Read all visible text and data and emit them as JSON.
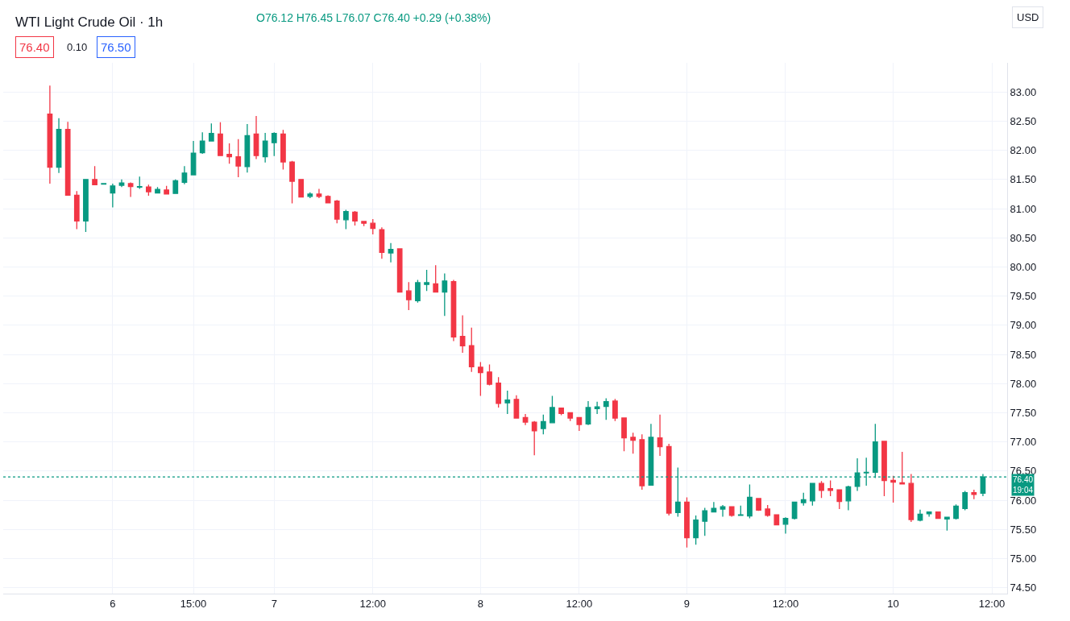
{
  "chart_data": {
    "type": "candlestick",
    "title": "WTI Light Crude Oil · 1h",
    "annotations": [
      "O76.12 H76.45 L76.07 C76.40 +0.29 (+0.38%)",
      "76.40",
      "0.10",
      "76.50",
      "USD"
    ],
    "categories": [
      null,
      null,
      null,
      null,
      null,
      null,
      null,
      "6",
      null,
      null,
      null,
      null,
      null,
      null,
      null,
      null,
      "15:00",
      null,
      null,
      null,
      null,
      null,
      null,
      null,
      null,
      "7",
      null,
      null,
      null,
      null,
      null,
      null,
      null,
      null,
      null,
      null,
      "12:00",
      null,
      null,
      null,
      null,
      null,
      null,
      null,
      null,
      null,
      null,
      null,
      "8",
      null,
      null,
      null,
      null,
      null,
      null,
      null,
      null,
      null,
      null,
      "12:00",
      null,
      null,
      null,
      null,
      null,
      null,
      null,
      null,
      null,
      null,
      null,
      "9",
      null,
      null,
      null,
      null,
      null,
      null,
      null,
      null,
      null,
      null,
      "12:00",
      null,
      null,
      null,
      null,
      null,
      null,
      null,
      null,
      null,
      null,
      null,
      "10",
      null,
      null,
      null,
      null,
      null,
      null,
      null,
      null,
      null,
      null,
      "12:00"
    ],
    "ohlc": [
      [
        82.62,
        83.11,
        81.43,
        81.71
      ],
      [
        81.71,
        82.55,
        81.61,
        82.36
      ],
      [
        82.36,
        82.49,
        81.23,
        81.23
      ],
      [
        81.23,
        81.3,
        80.65,
        80.79
      ],
      [
        80.79,
        81.5,
        80.6,
        81.5
      ],
      [
        81.5,
        81.73,
        81.41,
        81.41
      ],
      [
        81.42,
        81.43,
        81.41,
        81.43
      ],
      [
        81.27,
        81.43,
        81.02,
        81.39
      ],
      [
        81.4,
        81.5,
        81.37,
        81.44
      ],
      [
        81.43,
        81.45,
        81.2,
        81.38
      ],
      [
        81.37,
        81.55,
        81.34,
        81.38
      ],
      [
        81.37,
        81.41,
        81.22,
        81.29
      ],
      [
        81.27,
        81.37,
        81.27,
        81.33
      ],
      [
        81.32,
        81.39,
        81.25,
        81.25
      ],
      [
        81.26,
        81.5,
        81.26,
        81.48
      ],
      [
        81.45,
        81.73,
        81.42,
        81.61
      ],
      [
        81.58,
        82.16,
        81.58,
        81.95
      ],
      [
        81.96,
        82.31,
        81.94,
        82.16
      ],
      [
        82.16,
        82.46,
        82.16,
        82.29
      ],
      [
        82.28,
        82.48,
        81.91,
        81.91
      ],
      [
        81.93,
        82.12,
        81.77,
        81.89
      ],
      [
        81.89,
        82.19,
        81.54,
        81.73
      ],
      [
        81.72,
        82.45,
        81.62,
        82.25
      ],
      [
        82.28,
        82.59,
        81.85,
        81.91
      ],
      [
        81.89,
        82.3,
        81.79,
        82.16
      ],
      [
        82.13,
        82.31,
        81.9,
        82.29
      ],
      [
        82.28,
        82.35,
        81.67,
        81.8
      ],
      [
        81.8,
        81.82,
        81.09,
        81.47
      ],
      [
        81.5,
        81.5,
        81.2,
        81.2
      ],
      [
        81.21,
        81.28,
        81.18,
        81.25
      ],
      [
        81.25,
        81.34,
        81.18,
        81.21
      ],
      [
        81.21,
        81.23,
        81.09,
        81.1
      ],
      [
        81.13,
        81.15,
        80.75,
        80.82
      ],
      [
        80.81,
        80.98,
        80.65,
        80.95
      ],
      [
        80.94,
        80.96,
        80.71,
        80.79
      ],
      [
        80.78,
        80.79,
        80.7,
        80.75
      ],
      [
        80.75,
        80.82,
        80.56,
        80.66
      ],
      [
        80.64,
        80.68,
        80.14,
        80.25
      ],
      [
        80.24,
        80.41,
        80.08,
        80.3
      ],
      [
        80.31,
        80.31,
        79.57,
        79.57
      ],
      [
        79.59,
        79.74,
        79.26,
        79.44
      ],
      [
        79.42,
        79.78,
        79.39,
        79.73
      ],
      [
        79.7,
        79.95,
        79.59,
        79.73
      ],
      [
        79.71,
        80.03,
        79.57,
        79.57
      ],
      [
        79.57,
        79.89,
        79.16,
        79.76
      ],
      [
        79.75,
        79.78,
        78.73,
        78.8
      ],
      [
        78.81,
        79.17,
        78.53,
        78.65
      ],
      [
        78.65,
        78.96,
        78.2,
        78.29
      ],
      [
        78.28,
        78.37,
        77.79,
        78.19
      ],
      [
        78.2,
        78.33,
        77.97,
        77.99
      ],
      [
        78.01,
        78.11,
        77.59,
        77.66
      ],
      [
        77.67,
        77.88,
        77.48,
        77.72
      ],
      [
        77.73,
        77.8,
        77.41,
        77.41
      ],
      [
        77.42,
        77.48,
        77.29,
        77.34
      ],
      [
        77.34,
        77.36,
        76.77,
        77.19
      ],
      [
        77.23,
        77.47,
        77.13,
        77.35
      ],
      [
        77.33,
        77.79,
        77.33,
        77.59
      ],
      [
        77.58,
        77.58,
        77.46,
        77.49
      ],
      [
        77.5,
        77.5,
        77.36,
        77.41
      ],
      [
        77.42,
        77.42,
        77.19,
        77.3
      ],
      [
        77.31,
        77.7,
        77.29,
        77.59
      ],
      [
        77.57,
        77.69,
        77.48,
        77.6
      ],
      [
        77.61,
        77.75,
        77.38,
        77.69
      ],
      [
        77.7,
        77.74,
        77.36,
        77.41
      ],
      [
        77.41,
        77.41,
        76.84,
        77.07
      ],
      [
        77.08,
        77.16,
        76.8,
        77.03
      ],
      [
        77.04,
        77.13,
        76.18,
        76.25
      ],
      [
        76.26,
        77.31,
        76.26,
        77.08
      ],
      [
        77.07,
        77.47,
        76.76,
        76.92
      ],
      [
        76.92,
        76.97,
        75.74,
        75.78
      ],
      [
        75.79,
        76.56,
        75.72,
        75.97
      ],
      [
        75.97,
        76.05,
        75.19,
        75.36
      ],
      [
        75.36,
        75.74,
        75.24,
        75.66
      ],
      [
        75.64,
        75.87,
        75.39,
        75.82
      ],
      [
        75.8,
        75.97,
        75.8,
        75.86
      ],
      [
        75.85,
        75.92,
        75.72,
        75.89
      ],
      [
        75.89,
        75.89,
        75.72,
        75.74
      ],
      [
        75.74,
        75.91,
        75.74,
        75.75
      ],
      [
        75.73,
        76.27,
        75.69,
        76.05
      ],
      [
        76.03,
        76.03,
        75.82,
        75.83
      ],
      [
        75.85,
        75.92,
        75.72,
        75.74
      ],
      [
        75.75,
        75.75,
        75.58,
        75.58
      ],
      [
        75.59,
        75.71,
        75.43,
        75.69
      ],
      [
        75.69,
        75.97,
        75.67,
        75.97
      ],
      [
        75.96,
        76.13,
        75.91,
        76.01
      ],
      [
        75.99,
        76.29,
        75.91,
        76.29
      ],
      [
        76.29,
        76.33,
        76.04,
        76.17
      ],
      [
        76.2,
        76.34,
        76.07,
        76.17
      ],
      [
        76.18,
        76.18,
        75.85,
        75.98
      ],
      [
        75.99,
        76.25,
        75.83,
        76.23
      ],
      [
        76.24,
        76.72,
        76.16,
        76.47
      ],
      [
        76.47,
        76.73,
        76.25,
        76.48
      ],
      [
        76.48,
        77.31,
        76.38,
        77.0
      ],
      [
        77.01,
        77.01,
        76.07,
        76.34
      ],
      [
        76.34,
        76.42,
        75.96,
        76.31
      ],
      [
        76.3,
        76.83,
        76.28,
        76.28
      ],
      [
        76.29,
        76.45,
        75.63,
        75.67
      ],
      [
        75.66,
        75.84,
        75.64,
        75.76
      ],
      [
        75.77,
        75.8,
        75.72,
        75.8
      ],
      [
        75.8,
        75.8,
        75.68,
        75.69
      ],
      [
        75.68,
        75.71,
        75.48,
        75.71
      ],
      [
        75.69,
        75.93,
        75.67,
        75.9
      ],
      [
        75.86,
        76.16,
        75.83,
        76.13
      ],
      [
        76.13,
        76.18,
        76.02,
        76.1
      ],
      [
        76.12,
        76.45,
        76.07,
        76.4
      ],
      null
    ],
    "colors": [
      "#f23645",
      "#089981",
      "#f23645",
      "#f23645",
      "#089981",
      "#f23645",
      "#089981",
      "#089981",
      "#089981",
      "#f23645",
      "#089981",
      "#f23645",
      "#089981",
      "#f23645",
      "#089981",
      "#089981",
      "#089981",
      "#089981",
      "#089981",
      "#f23645",
      "#f23645",
      "#f23645",
      "#089981",
      "#f23645",
      "#089981",
      "#089981",
      "#f23645",
      "#f23645",
      "#f23645",
      "#089981",
      "#f23645",
      "#f23645",
      "#f23645",
      "#089981",
      "#f23645",
      "#f23645",
      "#f23645",
      "#f23645",
      "#089981",
      "#f23645",
      "#f23645",
      "#089981",
      "#089981",
      "#f23645",
      "#089981",
      "#f23645",
      "#f23645",
      "#f23645",
      "#f23645",
      "#f23645",
      "#f23645",
      "#089981",
      "#f23645",
      "#f23645",
      "#f23645",
      "#089981",
      "#089981",
      "#f23645",
      "#f23645",
      "#f23645",
      "#089981",
      "#089981",
      "#089981",
      "#f23645",
      "#f23645",
      "#f23645",
      "#f23645",
      "#089981",
      "#f23645",
      "#f23645",
      "#089981",
      "#f23645",
      "#089981",
      "#089981",
      "#089981",
      "#089981",
      "#f23645",
      "#089981",
      "#089981",
      "#f23645",
      "#f23645",
      "#f23645",
      "#089981",
      "#089981",
      "#089981",
      "#089981",
      "#f23645",
      "#f23645",
      "#f23645",
      "#089981",
      "#089981",
      "#089981",
      "#089981",
      "#f23645",
      "#f23645",
      "#f23645",
      "#f23645",
      "#089981",
      "#089981",
      "#f23645",
      "#089981",
      "#089981",
      "#089981",
      "#f23645",
      "#089981",
      null
    ],
    "ylim": [
      74.4,
      83.5
    ],
    "yticks": [
      {
        "value": 74.5,
        "label": "74.50"
      },
      {
        "value": 75,
        "label": "75.00"
      },
      {
        "value": 75.5,
        "label": "75.50"
      },
      {
        "value": 76,
        "label": "76.00"
      },
      {
        "value": 76.5,
        "label": "76.50"
      },
      {
        "value": 77,
        "label": "77.00"
      },
      {
        "value": 77.5,
        "label": "77.50"
      },
      {
        "value": 78,
        "label": "78.00"
      },
      {
        "value": 78.5,
        "label": "78.50"
      },
      {
        "value": 79,
        "label": "79.00"
      },
      {
        "value": 79.5,
        "label": "79.50"
      },
      {
        "value": 80,
        "label": "80.00"
      },
      {
        "value": 80.5,
        "label": "80.50"
      },
      {
        "value": 81,
        "label": "81.00"
      },
      {
        "value": 81.5,
        "label": "81.50"
      },
      {
        "value": 82,
        "label": "82.00"
      },
      {
        "value": 82.5,
        "label": "82.50"
      },
      {
        "value": 83,
        "label": "83.00"
      }
    ],
    "ref_lines": [
      {
        "axis": "y",
        "value": 76.4,
        "label": "76.40\n19:04",
        "color": "#089981",
        "line_style": "dotted"
      }
    ],
    "grid": true
  }
}
